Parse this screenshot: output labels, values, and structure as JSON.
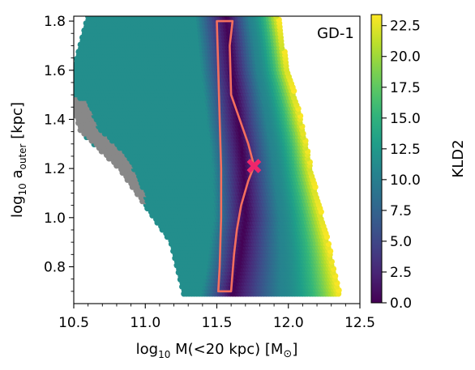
{
  "chart_data": {
    "type": "heatmap",
    "panel_label": "GD-1",
    "xlabel": {
      "prefix": "log",
      "sub": "10",
      "mid": " M(<20 kpc) [M",
      "sym": "⊙",
      "end": "]"
    },
    "ylabel": {
      "prefix": "log",
      "sub": "10",
      "mid": " a",
      "sub2": "outer",
      "end": " [kpc]"
    },
    "xlim": [
      10.5,
      12.5
    ],
    "ylim": [
      0.65,
      1.82
    ],
    "x_ticks": [
      {
        "value": 10.5,
        "label": "10.5"
      },
      {
        "value": 11.0,
        "label": "11.0"
      },
      {
        "value": 11.5,
        "label": "11.5"
      },
      {
        "value": 12.0,
        "label": "12.0"
      },
      {
        "value": 12.5,
        "label": "12.5"
      }
    ],
    "y_ticks": [
      {
        "value": 0.8,
        "label": "0.8"
      },
      {
        "value": 1.0,
        "label": "1.0"
      },
      {
        "value": 1.2,
        "label": "1.2"
      },
      {
        "value": 1.4,
        "label": "1.4"
      },
      {
        "value": 1.6,
        "label": "1.6"
      },
      {
        "value": 1.8,
        "label": "1.8"
      }
    ],
    "colorbar": {
      "label": "KLD2",
      "range": [
        0,
        23.4
      ],
      "ticks": [
        "0.0",
        "2.5",
        "5.0",
        "7.5",
        "10.0",
        "12.5",
        "15.0",
        "17.5",
        "20.0",
        "22.5"
      ],
      "tick_values": [
        0,
        2.5,
        5,
        7.5,
        10,
        12.5,
        15,
        17.5,
        20,
        22.5
      ],
      "colormap": "viridis"
    },
    "valid_region": {
      "left_edge": [
        [
          1.82,
          10.6
        ],
        [
          1.6,
          10.5
        ],
        [
          1.45,
          10.5
        ],
        [
          1.35,
          10.55
        ],
        [
          1.2,
          10.82
        ],
        [
          1.05,
          11.0
        ],
        [
          0.9,
          11.18
        ],
        [
          0.69,
          11.27
        ]
      ],
      "right_edge": [
        [
          1.82,
          11.93
        ],
        [
          1.6,
          12.0
        ],
        [
          1.45,
          12.07
        ],
        [
          1.3,
          12.13
        ],
        [
          1.15,
          12.18
        ],
        [
          1.0,
          12.24
        ],
        [
          0.85,
          12.3
        ],
        [
          0.69,
          12.36
        ]
      ]
    },
    "gray_region": [
      [
        1.5,
        10.5
      ],
      [
        1.47,
        10.6
      ],
      [
        1.36,
        10.68
      ],
      [
        1.25,
        10.88
      ],
      [
        1.1,
        11.0
      ],
      [
        1.02,
        11.0
      ],
      [
        1.18,
        10.82
      ],
      [
        1.33,
        10.6
      ],
      [
        1.36,
        10.5
      ]
    ],
    "minimum_valley": [
      [
        1.82,
        11.58
      ],
      [
        1.6,
        11.62
      ],
      [
        1.4,
        11.66
      ],
      [
        1.2,
        11.7
      ],
      [
        1.0,
        11.71
      ],
      [
        0.8,
        11.66
      ],
      [
        0.69,
        11.62
      ]
    ],
    "contour": [
      [
        1.8,
        11.5
      ],
      [
        1.8,
        11.61
      ],
      [
        1.7,
        11.59
      ],
      [
        1.5,
        11.6
      ],
      [
        1.4,
        11.66
      ],
      [
        1.3,
        11.72
      ],
      [
        1.21,
        11.76
      ],
      [
        1.15,
        11.72
      ],
      [
        1.05,
        11.67
      ],
      [
        0.95,
        11.64
      ],
      [
        0.85,
        11.62
      ],
      [
        0.7,
        11.6
      ],
      [
        0.7,
        11.51
      ],
      [
        0.8,
        11.52
      ],
      [
        1.0,
        11.53
      ],
      [
        1.2,
        11.53
      ],
      [
        1.4,
        11.52
      ],
      [
        1.6,
        11.51
      ],
      [
        1.8,
        11.5
      ]
    ],
    "best_fit": {
      "x": 11.76,
      "y": 1.21
    },
    "colors": {
      "contour": "#f46f5e",
      "marker": "#f0266b",
      "gray": "#888888"
    }
  }
}
